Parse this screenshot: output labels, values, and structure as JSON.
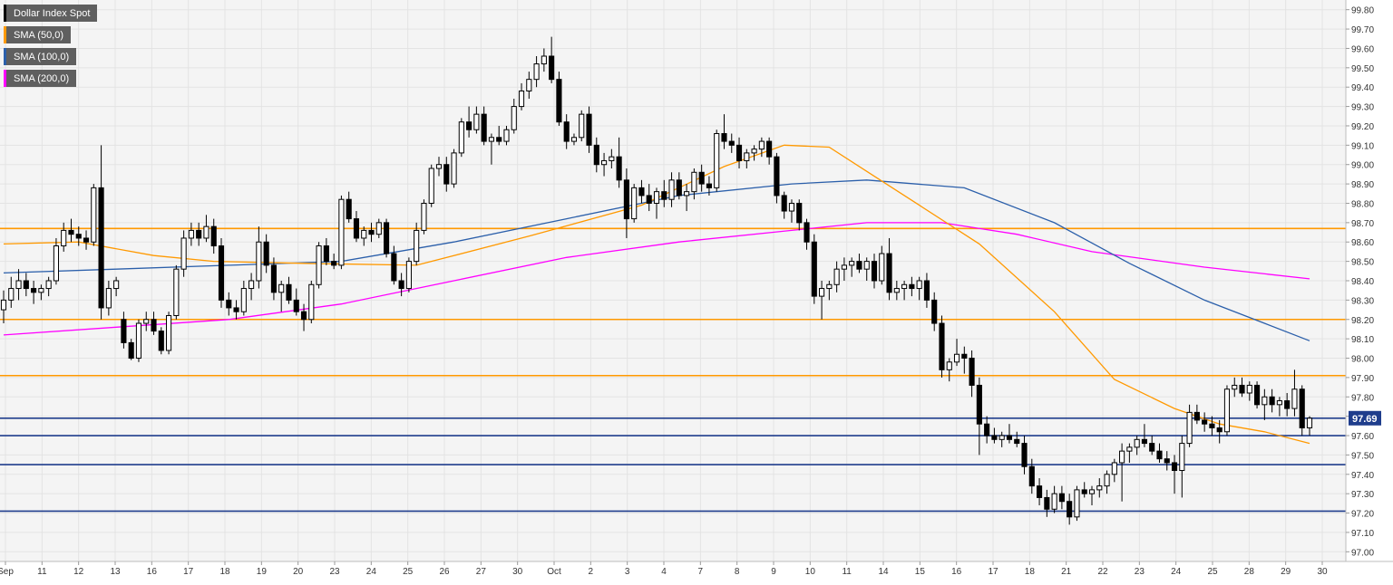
{
  "chart_data": {
    "type": "candlestick",
    "title": "",
    "series": [
      {
        "name": "Dollar Index Spot",
        "color": "#000000"
      },
      {
        "name": "SMA (50,0)",
        "color": "#ff9900"
      },
      {
        "name": "SMA (100,0)",
        "color": "#2b5faa"
      },
      {
        "name": "SMA (200,0)",
        "color": "#ff00ff"
      }
    ],
    "y_axis": {
      "min": 96.95,
      "max": 99.85,
      "ticks": [
        "99.80",
        "99.70",
        "99.60",
        "99.50",
        "99.40",
        "99.30",
        "99.20",
        "99.10",
        "99.00",
        "98.90",
        "98.80",
        "98.70",
        "98.60",
        "98.50",
        "98.40",
        "98.30",
        "98.20",
        "98.10",
        "98.00",
        "97.90",
        "97.80",
        "97.70",
        "97.60",
        "97.50",
        "97.40",
        "97.30",
        "97.20",
        "97.10",
        "97.00"
      ]
    },
    "x_axis": {
      "labels": [
        "Sep",
        "11",
        "12",
        "13",
        "16",
        "17",
        "18",
        "19",
        "20",
        "23",
        "24",
        "25",
        "26",
        "27",
        "30",
        "Oct",
        "2",
        "3",
        "4",
        "7",
        "8",
        "9",
        "10",
        "11",
        "14",
        "15",
        "16",
        "17",
        "18",
        "21",
        "22",
        "23",
        "24",
        "25",
        "28",
        "29",
        "30"
      ]
    },
    "current_price": "97.69",
    "grid": true,
    "horizontal_levels": [
      {
        "value": 98.67,
        "color": "#ff9900"
      },
      {
        "value": 98.2,
        "color": "#ff9900"
      },
      {
        "value": 97.91,
        "color": "#ff9900"
      },
      {
        "value": 97.69,
        "color": "#1f3d8c"
      },
      {
        "value": 97.6,
        "color": "#1f3d8c"
      },
      {
        "value": 97.45,
        "color": "#1f3d8c"
      },
      {
        "value": 97.21,
        "color": "#1f3d8c"
      }
    ],
    "ohlc": [
      [
        98.25,
        98.35,
        98.18,
        98.3
      ],
      [
        98.3,
        98.42,
        98.26,
        98.36
      ],
      [
        98.36,
        98.46,
        98.3,
        98.4
      ],
      [
        98.4,
        98.44,
        98.32,
        98.36
      ],
      [
        98.36,
        98.4,
        98.28,
        98.34
      ],
      [
        98.34,
        98.38,
        98.3,
        98.36
      ],
      [
        98.36,
        98.42,
        98.32,
        98.4
      ],
      [
        98.4,
        98.62,
        98.38,
        98.58
      ],
      [
        98.58,
        98.7,
        98.55,
        98.66
      ],
      [
        98.66,
        98.72,
        98.6,
        98.64
      ],
      [
        98.64,
        98.68,
        98.58,
        98.62
      ],
      [
        98.62,
        98.66,
        98.56,
        98.6
      ],
      [
        98.6,
        98.9,
        98.58,
        98.88
      ],
      [
        98.88,
        99.1,
        98.2,
        98.26
      ],
      [
        98.26,
        98.4,
        98.22,
        98.36
      ],
      [
        98.36,
        98.42,
        98.32,
        98.4
      ],
      [
        98.2,
        98.24,
        98.05,
        98.08
      ],
      [
        98.08,
        98.1,
        97.99,
        98.0
      ],
      [
        98.0,
        98.2,
        97.98,
        98.18
      ],
      [
        98.18,
        98.24,
        98.14,
        98.2
      ],
      [
        98.2,
        98.24,
        98.12,
        98.14
      ],
      [
        98.14,
        98.16,
        98.02,
        98.04
      ],
      [
        98.04,
        98.24,
        98.02,
        98.22
      ],
      [
        98.22,
        98.48,
        98.2,
        98.46
      ],
      [
        98.46,
        98.66,
        98.42,
        98.62
      ],
      [
        98.62,
        98.7,
        98.58,
        98.66
      ],
      [
        98.66,
        98.7,
        98.58,
        98.62
      ],
      [
        98.62,
        98.74,
        98.6,
        98.68
      ],
      [
        98.68,
        98.72,
        98.54,
        98.58
      ],
      [
        98.58,
        98.62,
        98.26,
        98.3
      ],
      [
        98.3,
        98.34,
        98.22,
        98.26
      ],
      [
        98.26,
        98.3,
        98.2,
        98.24
      ],
      [
        98.24,
        98.4,
        98.22,
        98.36
      ],
      [
        98.36,
        98.44,
        98.3,
        98.4
      ],
      [
        98.4,
        98.68,
        98.36,
        98.6
      ],
      [
        98.6,
        98.64,
        98.44,
        98.48
      ],
      [
        98.48,
        98.52,
        98.3,
        98.34
      ],
      [
        98.34,
        98.4,
        98.24,
        98.38
      ],
      [
        98.38,
        98.42,
        98.28,
        98.3
      ],
      [
        98.3,
        98.36,
        98.22,
        98.24
      ],
      [
        98.24,
        98.28,
        98.14,
        98.2
      ],
      [
        98.2,
        98.4,
        98.18,
        98.38
      ],
      [
        98.38,
        98.6,
        98.36,
        98.58
      ],
      [
        98.58,
        98.62,
        98.48,
        98.5
      ],
      [
        98.5,
        98.54,
        98.46,
        98.48
      ],
      [
        98.48,
        98.84,
        98.46,
        98.82
      ],
      [
        98.82,
        98.86,
        98.7,
        98.72
      ],
      [
        98.72,
        98.76,
        98.6,
        98.62
      ],
      [
        98.62,
        98.68,
        98.58,
        98.66
      ],
      [
        98.66,
        98.7,
        98.6,
        98.64
      ],
      [
        98.64,
        98.72,
        98.62,
        98.7
      ],
      [
        98.7,
        98.72,
        98.52,
        98.54
      ],
      [
        98.54,
        98.58,
        98.38,
        98.4
      ],
      [
        98.4,
        98.44,
        98.32,
        98.36
      ],
      [
        98.36,
        98.52,
        98.34,
        98.5
      ],
      [
        98.5,
        98.7,
        98.48,
        98.66
      ],
      [
        98.66,
        98.82,
        98.64,
        98.8
      ],
      [
        98.8,
        99.0,
        98.78,
        98.98
      ],
      [
        98.98,
        99.04,
        98.94,
        99.0
      ],
      [
        99.0,
        99.04,
        98.86,
        98.9
      ],
      [
        98.9,
        99.08,
        98.88,
        99.06
      ],
      [
        99.06,
        99.24,
        99.04,
        99.22
      ],
      [
        99.22,
        99.3,
        99.14,
        99.18
      ],
      [
        99.18,
        99.3,
        99.16,
        99.26
      ],
      [
        99.26,
        99.3,
        99.1,
        99.12
      ],
      [
        99.12,
        99.16,
        99.0,
        99.14
      ],
      [
        99.14,
        99.2,
        99.1,
        99.12
      ],
      [
        99.12,
        99.2,
        99.1,
        99.18
      ],
      [
        99.18,
        99.34,
        99.16,
        99.3
      ],
      [
        99.3,
        99.42,
        99.28,
        99.38
      ],
      [
        99.38,
        99.48,
        99.34,
        99.44
      ],
      [
        99.44,
        99.56,
        99.4,
        99.52
      ],
      [
        99.52,
        99.6,
        99.48,
        99.56
      ],
      [
        99.56,
        99.66,
        99.42,
        99.44
      ],
      [
        99.44,
        99.48,
        99.2,
        99.22
      ],
      [
        99.22,
        99.26,
        99.08,
        99.12
      ],
      [
        99.12,
        99.16,
        99.1,
        99.14
      ],
      [
        99.14,
        99.28,
        99.12,
        99.26
      ],
      [
        99.26,
        99.3,
        99.06,
        99.1
      ],
      [
        99.1,
        99.14,
        98.96,
        99.0
      ],
      [
        99.0,
        99.06,
        98.94,
        99.02
      ],
      [
        99.02,
        99.08,
        98.98,
        99.04
      ],
      [
        99.04,
        99.14,
        98.88,
        98.92
      ],
      [
        98.92,
        98.98,
        98.62,
        98.72
      ],
      [
        98.72,
        98.9,
        98.7,
        98.88
      ],
      [
        98.88,
        98.92,
        98.8,
        98.84
      ],
      [
        98.84,
        98.9,
        98.76,
        98.8
      ],
      [
        98.8,
        98.88,
        98.72,
        98.86
      ],
      [
        98.86,
        98.92,
        98.78,
        98.82
      ],
      [
        98.82,
        98.96,
        98.78,
        98.92
      ],
      [
        98.92,
        98.96,
        98.82,
        98.84
      ],
      [
        98.84,
        98.9,
        98.76,
        98.86
      ],
      [
        98.86,
        98.98,
        98.82,
        98.96
      ],
      [
        98.96,
        99.0,
        98.86,
        98.9
      ],
      [
        98.9,
        98.94,
        98.84,
        98.88
      ],
      [
        98.88,
        99.18,
        98.86,
        99.16
      ],
      [
        99.16,
        99.26,
        99.08,
        99.12
      ],
      [
        99.12,
        99.16,
        99.06,
        99.1
      ],
      [
        99.1,
        99.14,
        98.98,
        99.02
      ],
      [
        99.02,
        99.08,
        98.98,
        99.06
      ],
      [
        99.06,
        99.1,
        99.02,
        99.08
      ],
      [
        99.08,
        99.14,
        99.04,
        99.12
      ],
      [
        99.12,
        99.14,
        99.0,
        99.04
      ],
      [
        99.04,
        99.06,
        98.8,
        98.84
      ],
      [
        98.84,
        98.86,
        98.72,
        98.76
      ],
      [
        98.76,
        98.82,
        98.7,
        98.8
      ],
      [
        98.8,
        98.82,
        98.66,
        98.7
      ],
      [
        98.7,
        98.72,
        98.56,
        98.6
      ],
      [
        98.6,
        98.64,
        98.28,
        98.32
      ],
      [
        98.32,
        98.4,
        98.2,
        98.36
      ],
      [
        98.36,
        98.4,
        98.3,
        98.38
      ],
      [
        98.38,
        98.5,
        98.34,
        98.46
      ],
      [
        98.46,
        98.52,
        98.4,
        98.48
      ],
      [
        98.48,
        98.52,
        98.42,
        98.5
      ],
      [
        98.5,
        98.54,
        98.44,
        98.46
      ],
      [
        98.46,
        98.52,
        98.4,
        98.5
      ],
      [
        98.5,
        98.54,
        98.36,
        98.4
      ],
      [
        98.4,
        98.58,
        98.38,
        98.54
      ],
      [
        98.54,
        98.62,
        98.3,
        98.34
      ],
      [
        98.34,
        98.4,
        98.3,
        98.36
      ],
      [
        98.36,
        98.4,
        98.3,
        98.38
      ],
      [
        98.38,
        98.42,
        98.32,
        98.36
      ],
      [
        98.36,
        98.42,
        98.3,
        98.4
      ],
      [
        98.4,
        98.44,
        98.26,
        98.3
      ],
      [
        98.3,
        98.34,
        98.14,
        98.18
      ],
      [
        98.18,
        98.22,
        97.9,
        97.94
      ],
      [
        97.94,
        98.0,
        97.88,
        97.98
      ],
      [
        97.98,
        98.1,
        97.96,
        98.02
      ],
      [
        98.02,
        98.06,
        97.92,
        98.0
      ],
      [
        98.0,
        98.04,
        97.8,
        97.86
      ],
      [
        97.86,
        97.9,
        97.5,
        97.66
      ],
      [
        97.66,
        97.7,
        97.56,
        97.6
      ],
      [
        97.6,
        97.64,
        97.56,
        97.58
      ],
      [
        97.58,
        97.62,
        97.54,
        97.6
      ],
      [
        97.6,
        97.66,
        97.56,
        97.58
      ],
      [
        97.58,
        97.62,
        97.54,
        97.56
      ],
      [
        97.56,
        97.6,
        97.4,
        97.44
      ],
      [
        97.44,
        97.48,
        97.3,
        97.34
      ],
      [
        97.34,
        97.38,
        97.24,
        97.28
      ],
      [
        97.28,
        97.32,
        97.18,
        97.22
      ],
      [
        97.22,
        97.34,
        97.2,
        97.3
      ],
      [
        97.3,
        97.34,
        97.22,
        97.26
      ],
      [
        97.26,
        97.3,
        97.14,
        97.18
      ],
      [
        97.18,
        97.34,
        97.16,
        97.32
      ],
      [
        97.32,
        97.36,
        97.28,
        97.3
      ],
      [
        97.3,
        97.34,
        97.24,
        97.32
      ],
      [
        97.32,
        97.38,
        97.28,
        97.34
      ],
      [
        97.34,
        97.42,
        97.3,
        97.4
      ],
      [
        97.4,
        97.48,
        97.36,
        97.46
      ],
      [
        97.46,
        97.56,
        97.26,
        97.52
      ],
      [
        97.52,
        97.56,
        97.46,
        97.54
      ],
      [
        97.54,
        97.6,
        97.5,
        97.58
      ],
      [
        97.58,
        97.66,
        97.54,
        97.56
      ],
      [
        97.56,
        97.6,
        97.5,
        97.52
      ],
      [
        97.52,
        97.56,
        97.46,
        97.48
      ],
      [
        97.48,
        97.52,
        97.42,
        97.46
      ],
      [
        97.46,
        97.5,
        97.3,
        97.42
      ],
      [
        97.42,
        97.6,
        97.28,
        97.56
      ],
      [
        97.56,
        97.76,
        97.54,
        97.72
      ],
      [
        97.72,
        97.76,
        97.66,
        97.68
      ],
      [
        97.68,
        97.72,
        97.62,
        97.66
      ],
      [
        97.66,
        97.7,
        97.6,
        97.64
      ],
      [
        97.64,
        97.68,
        97.56,
        97.62
      ],
      [
        97.62,
        97.86,
        97.6,
        97.84
      ],
      [
        97.84,
        97.9,
        97.8,
        97.86
      ],
      [
        97.86,
        97.9,
        97.8,
        97.82
      ],
      [
        97.82,
        97.88,
        97.78,
        97.86
      ],
      [
        97.86,
        97.88,
        97.74,
        97.76
      ],
      [
        97.76,
        97.84,
        97.68,
        97.8
      ],
      [
        97.8,
        97.84,
        97.72,
        97.76
      ],
      [
        97.76,
        97.8,
        97.7,
        97.78
      ],
      [
        97.78,
        97.82,
        97.7,
        97.74
      ],
      [
        97.74,
        97.94,
        97.7,
        97.84
      ],
      [
        97.84,
        97.86,
        97.6,
        97.64
      ],
      [
        97.64,
        97.7,
        97.6,
        97.69
      ]
    ],
    "sma50": [
      [
        0,
        98.59
      ],
      [
        10,
        98.6
      ],
      [
        20,
        98.53
      ],
      [
        28,
        98.5
      ],
      [
        40,
        98.49
      ],
      [
        55,
        98.48
      ],
      [
        70,
        98.63
      ],
      [
        85,
        98.79
      ],
      [
        96,
        98.99
      ],
      [
        104,
        99.1
      ],
      [
        110,
        99.09
      ],
      [
        116,
        98.94
      ],
      [
        122,
        98.79
      ],
      [
        130,
        98.59
      ],
      [
        140,
        98.24
      ],
      [
        148,
        97.89
      ],
      [
        156,
        97.74
      ],
      [
        162,
        97.66
      ],
      [
        168,
        97.62
      ],
      [
        174,
        97.56
      ]
    ],
    "sma100": [
      [
        0,
        98.44
      ],
      [
        15,
        98.46
      ],
      [
        30,
        98.48
      ],
      [
        45,
        98.5
      ],
      [
        60,
        98.6
      ],
      [
        75,
        98.72
      ],
      [
        90,
        98.84
      ],
      [
        105,
        98.9
      ],
      [
        115,
        98.92
      ],
      [
        128,
        98.88
      ],
      [
        140,
        98.7
      ],
      [
        150,
        98.49
      ],
      [
        160,
        98.3
      ],
      [
        168,
        98.18
      ],
      [
        174,
        98.09
      ]
    ],
    "sma200": [
      [
        0,
        98.12
      ],
      [
        15,
        98.16
      ],
      [
        30,
        98.2
      ],
      [
        45,
        98.28
      ],
      [
        60,
        98.4
      ],
      [
        75,
        98.52
      ],
      [
        90,
        98.6
      ],
      [
        105,
        98.66
      ],
      [
        115,
        98.7
      ],
      [
        125,
        98.7
      ],
      [
        135,
        98.64
      ],
      [
        145,
        98.55
      ],
      [
        160,
        98.47
      ],
      [
        174,
        98.41
      ]
    ]
  }
}
